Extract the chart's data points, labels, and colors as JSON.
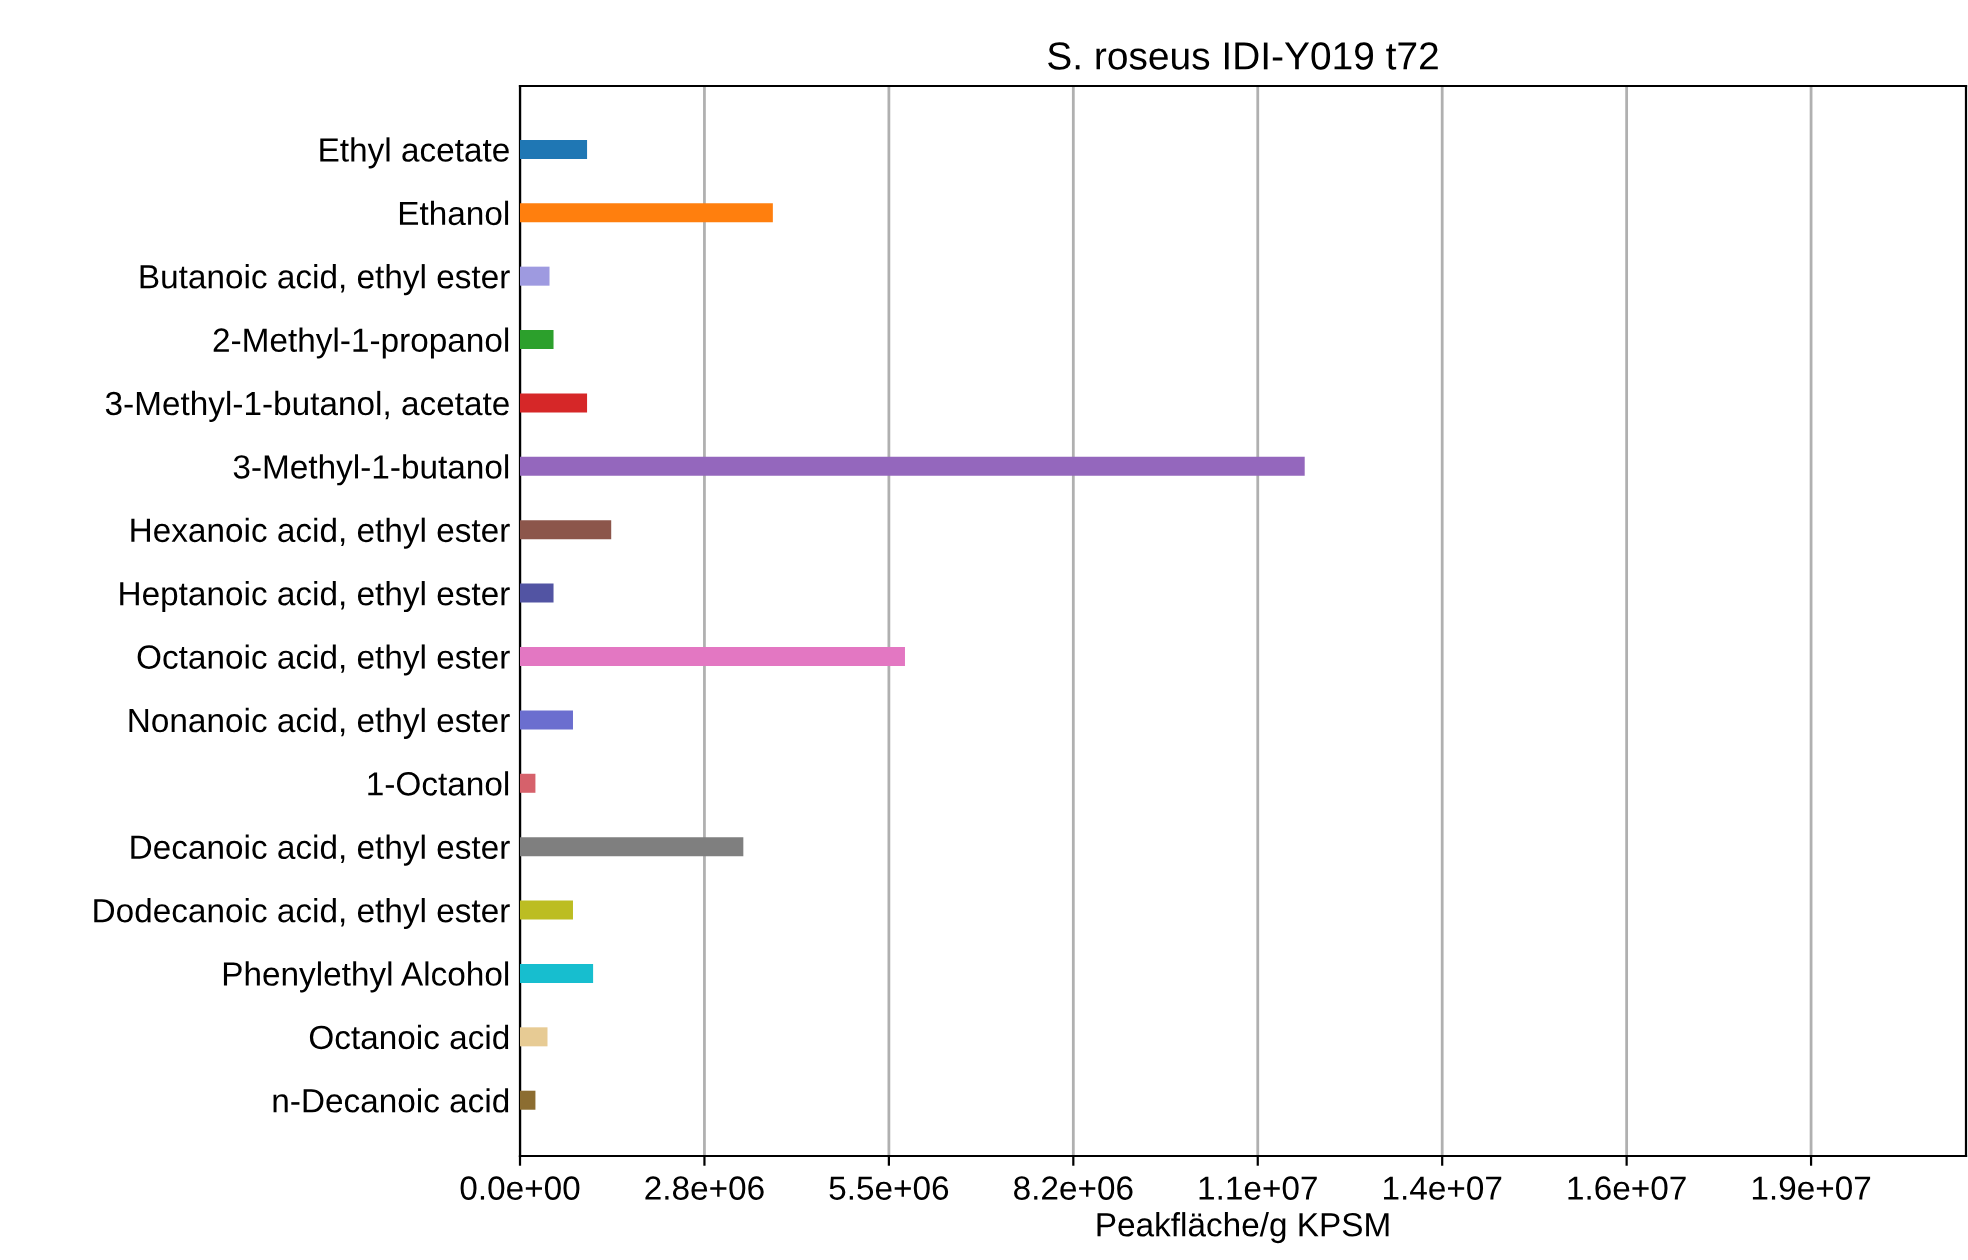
{
  "chart_data": {
    "type": "bar",
    "orientation": "horizontal",
    "title": "S. roseus IDI-Y019 t72",
    "xlabel": "Peakfläche/g KPSM",
    "categories": [
      "Ethyl acetate",
      "Ethanol",
      "Butanoic acid, ethyl ester",
      "2-Methyl-1-propanol",
      "3-Methyl-1-butanol, acetate",
      "3-Methyl-1-butanol",
      "Hexanoic acid, ethyl ester",
      "Heptanoic acid, ethyl ester",
      "Octanoic acid, ethyl ester",
      "Nonanoic acid, ethyl ester",
      "1-Octanol",
      "Decanoic acid, ethyl ester",
      "Dodecanoic acid, ethyl ester",
      "Phenylethyl Alcohol",
      "Octanoic acid",
      "n-Decanoic acid"
    ],
    "values": [
      1000000,
      3770000,
      440000,
      500000,
      1000000,
      11700000,
      1360000,
      500000,
      5740000,
      790000,
      230000,
      3330000,
      790000,
      1090000,
      410000,
      230000
    ],
    "colors": [
      "#1f77b4",
      "#ff7f0e",
      "#9e9ae0",
      "#2ca02c",
      "#d62728",
      "#9467bd",
      "#8c564b",
      "#5254a3",
      "#e377c2",
      "#6b6ecf",
      "#d6616b",
      "#7f7f7f",
      "#bcbd22",
      "#17becf",
      "#e7cb94",
      "#8c6d31"
    ],
    "xlim": [
      0,
      21560000
    ],
    "xticks": [
      {
        "value": 0,
        "label": "0.0e+00"
      },
      {
        "value": 2750000,
        "label": "2.8e+06"
      },
      {
        "value": 5500000,
        "label": "5.5e+06"
      },
      {
        "value": 8250000,
        "label": "8.2e+06"
      },
      {
        "value": 11000000,
        "label": "1.1e+07"
      },
      {
        "value": 13750000,
        "label": "1.4e+07"
      },
      {
        "value": 16500000,
        "label": "1.6e+07"
      },
      {
        "value": 19250000,
        "label": "1.9e+07"
      }
    ],
    "grid": "x"
  }
}
